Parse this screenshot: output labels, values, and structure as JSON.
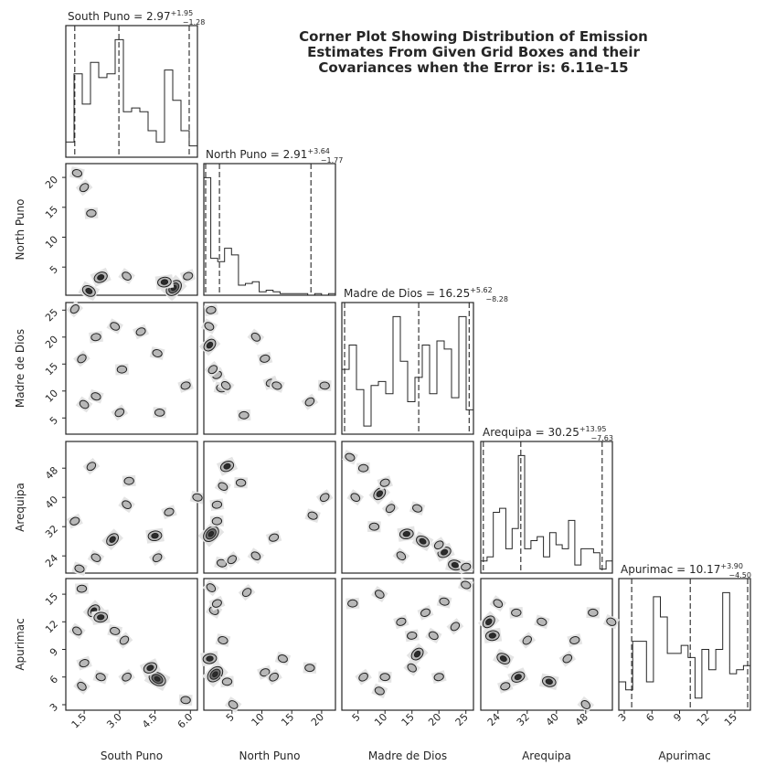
{
  "title_lines": [
    "Corner Plot Showing Distribution of Emission",
    "Estimates From Given Grid Boxes and their",
    "Covariances when the Error is: 6.11e-15"
  ],
  "chart_data": {
    "type": "corner",
    "parameters": [
      {
        "name": "South Puno",
        "median": "2.97",
        "plus": "+1.95",
        "minus": "−1.28",
        "range": [
          0.72,
          6.3
        ],
        "ticks": [
          1.5,
          3.0,
          4.5,
          6.0
        ],
        "tick_labels": [
          "1.5",
          "3.0",
          "4.5",
          "6.0"
        ],
        "quantiles": [
          1.1,
          2.97,
          5.95
        ],
        "hist": [
          4,
          22,
          14,
          25,
          21,
          22,
          31,
          12,
          13,
          12,
          7,
          4,
          23,
          15,
          7,
          3
        ]
      },
      {
        "name": "North Puno",
        "median": "2.91",
        "plus": "+3.64",
        "minus": "−1.77",
        "range": [
          0.3,
          22.3
        ],
        "ticks": [
          5,
          10,
          15,
          20
        ],
        "tick_labels": [
          "5",
          "10",
          "15",
          "20"
        ],
        "quantiles": [
          0.6,
          2.91,
          18.2
        ],
        "hist": [
          70,
          22,
          20,
          28,
          24,
          6,
          7,
          8,
          2,
          3,
          2,
          1,
          1,
          1,
          1,
          0,
          1,
          0,
          1
        ]
      },
      {
        "name": "Madre de Dios",
        "median": "16.25",
        "plus": "+5.62",
        "minus": "−8.28",
        "range": [
          2.0,
          26.4
        ],
        "ticks": [
          5,
          10,
          15,
          20,
          25
        ],
        "tick_labels": [
          "5",
          "10",
          "15",
          "20",
          "25"
        ],
        "quantiles": [
          2.5,
          16.25,
          25.6
        ],
        "hist": [
          16,
          22,
          11,
          2,
          12,
          13,
          10,
          29,
          18,
          8,
          14,
          22,
          10,
          23,
          21,
          9,
          29,
          6
        ]
      },
      {
        "name": "Arequipa",
        "median": "30.25",
        "plus": "+13.95",
        "minus": "−7.63",
        "range": [
          19.3,
          55.3
        ],
        "ticks": [
          24,
          32,
          40,
          48
        ],
        "tick_labels": [
          "24",
          "32",
          "40",
          "48"
        ],
        "quantiles": [
          20.0,
          30.25,
          52.5
        ],
        "hist": [
          3,
          4,
          15,
          16,
          6,
          11,
          29,
          6,
          8,
          9,
          4,
          10,
          7,
          6,
          13,
          2,
          6,
          6,
          5,
          1,
          3
        ]
      },
      {
        "name": "Apurimac",
        "median": "10.17",
        "plus": "+3.90",
        "minus": "−4.50",
        "range": [
          2.4,
          16.7
        ],
        "ticks": [
          3,
          6,
          9,
          12,
          15
        ],
        "tick_labels": [
          "3",
          "6",
          "9",
          "12",
          "15"
        ],
        "quantiles": [
          3.8,
          10.17,
          16.4
        ],
        "hist": [
          7,
          5,
          17,
          17,
          7,
          28,
          23,
          14,
          14,
          16,
          13,
          3,
          15,
          10,
          15,
          29,
          9,
          10,
          11
        ]
      }
    ],
    "pairs": [
      {
        "x": 0,
        "y": 1,
        "density": [
          [
            5.3,
            1.5,
            3
          ],
          [
            4.9,
            2.5,
            2
          ],
          [
            1.7,
            1,
            2
          ],
          [
            2.2,
            3.3,
            2
          ],
          [
            1.2,
            20.7,
            1
          ],
          [
            1.5,
            18.3,
            1
          ],
          [
            1.8,
            14,
            1
          ],
          [
            3.3,
            3.5,
            1
          ],
          [
            5.9,
            3.5,
            1
          ]
        ]
      },
      {
        "x": 0,
        "y": 2,
        "density": [
          [
            1.1,
            25.2,
            1
          ],
          [
            2.0,
            20,
            1
          ],
          [
            2.8,
            22,
            1
          ],
          [
            3.9,
            21,
            1
          ],
          [
            4.6,
            17,
            1
          ],
          [
            1.4,
            16,
            1
          ],
          [
            3.1,
            14,
            1
          ],
          [
            1.5,
            7.5,
            1
          ],
          [
            5.8,
            11,
            1
          ],
          [
            2.0,
            9,
            1
          ],
          [
            3.0,
            6,
            1
          ],
          [
            4.7,
            6,
            1
          ]
        ]
      },
      {
        "x": 0,
        "y": 3,
        "density": [
          [
            2.7,
            28.5,
            2
          ],
          [
            4.5,
            29.5,
            2
          ],
          [
            2.0,
            23.5,
            1
          ],
          [
            1.1,
            33.5,
            1
          ],
          [
            6.3,
            40,
            1
          ],
          [
            1.8,
            48.5,
            1
          ],
          [
            3.4,
            44.5,
            1
          ],
          [
            3.3,
            38,
            1
          ],
          [
            5.1,
            36,
            1
          ],
          [
            1.3,
            20.5,
            1
          ],
          [
            4.6,
            23.5,
            1
          ]
        ]
      },
      {
        "x": 0,
        "y": 4,
        "density": [
          [
            1.9,
            13.2,
            2
          ],
          [
            2.2,
            12.5,
            2
          ],
          [
            4.6,
            5.8,
            3
          ],
          [
            4.3,
            7,
            2
          ],
          [
            2.8,
            11,
            1
          ],
          [
            3.2,
            10,
            1
          ],
          [
            1.4,
            15.6,
            1
          ],
          [
            1.2,
            11,
            1
          ],
          [
            1.5,
            7.5,
            1
          ],
          [
            2.2,
            6,
            1
          ],
          [
            3.3,
            6,
            1
          ],
          [
            5.8,
            3.5,
            1
          ],
          [
            1.4,
            5,
            1
          ]
        ]
      },
      {
        "x": 1,
        "y": 2,
        "density": [
          [
            1.3,
            18.5,
            2
          ],
          [
            1.5,
            25,
            1
          ],
          [
            1.2,
            22,
            1
          ],
          [
            2.5,
            13,
            1
          ],
          [
            3.2,
            10.5,
            1
          ],
          [
            1.8,
            14,
            1
          ],
          [
            7,
            5.5,
            1
          ],
          [
            4,
            11,
            1
          ],
          [
            11.5,
            11.5,
            1
          ],
          [
            12.5,
            11,
            1
          ],
          [
            18,
            8,
            1
          ],
          [
            20.5,
            11,
            1
          ],
          [
            9,
            20,
            1
          ],
          [
            10.5,
            16,
            1
          ]
        ]
      },
      {
        "x": 1,
        "y": 3,
        "density": [
          [
            1.5,
            30,
            3
          ],
          [
            2.5,
            38,
            1
          ],
          [
            3.5,
            43,
            1
          ],
          [
            4.2,
            48.5,
            2
          ],
          [
            3.3,
            22,
            1
          ],
          [
            5,
            23,
            1
          ],
          [
            2.5,
            33.5,
            1
          ],
          [
            9,
            24,
            1
          ],
          [
            12,
            29,
            1
          ],
          [
            18.5,
            35,
            1
          ],
          [
            20.5,
            40,
            1
          ],
          [
            6.5,
            44,
            1
          ]
        ]
      },
      {
        "x": 1,
        "y": 4,
        "density": [
          [
            2.2,
            6.3,
            3
          ],
          [
            1.3,
            8,
            2
          ],
          [
            2,
            13.2,
            1
          ],
          [
            2.5,
            14,
            1
          ],
          [
            3.5,
            10,
            1
          ],
          [
            7.5,
            15.2,
            1
          ],
          [
            4.2,
            5.5,
            1
          ],
          [
            5.2,
            3,
            1
          ],
          [
            10.5,
            6.5,
            1
          ],
          [
            13.5,
            8,
            1
          ],
          [
            12,
            6,
            1
          ],
          [
            18,
            7,
            1
          ],
          [
            1.5,
            15.7,
            1
          ]
        ]
      },
      {
        "x": 2,
        "y": 3,
        "density": [
          [
            9,
            41,
            2
          ],
          [
            14,
            30,
            2
          ],
          [
            17,
            28,
            2
          ],
          [
            21,
            25,
            2
          ],
          [
            23,
            21.5,
            2
          ],
          [
            11,
            37,
            1
          ],
          [
            6,
            48,
            1
          ],
          [
            4.5,
            40,
            1
          ],
          [
            10,
            44,
            1
          ],
          [
            16,
            37,
            1
          ],
          [
            20,
            27,
            1
          ],
          [
            8,
            32,
            1
          ],
          [
            13,
            24,
            1
          ],
          [
            25,
            21,
            1
          ],
          [
            3.5,
            51,
            1
          ]
        ]
      },
      {
        "x": 2,
        "y": 4,
        "density": [
          [
            16,
            8.5,
            2
          ],
          [
            15,
            10.5,
            1
          ],
          [
            19,
            10.5,
            1
          ],
          [
            17.5,
            13,
            1
          ],
          [
            21,
            14.2,
            1
          ],
          [
            23,
            11.5,
            1
          ],
          [
            4,
            14,
            1
          ],
          [
            9,
            15,
            1
          ],
          [
            13,
            12,
            1
          ],
          [
            25,
            16,
            1
          ],
          [
            6,
            6,
            1
          ],
          [
            10,
            6,
            1
          ],
          [
            15,
            7,
            1
          ],
          [
            20,
            6,
            1
          ],
          [
            9,
            4.5,
            1
          ]
        ]
      },
      {
        "x": 3,
        "y": 4,
        "density": [
          [
            21.5,
            12,
            2
          ],
          [
            22.5,
            10.5,
            2
          ],
          [
            25.5,
            8,
            2
          ],
          [
            29.5,
            6,
            2
          ],
          [
            38,
            5.5,
            2
          ],
          [
            32,
            10,
            1
          ],
          [
            29,
            13,
            1
          ],
          [
            24,
            14,
            1
          ],
          [
            26,
            5,
            1
          ],
          [
            36,
            12,
            1
          ],
          [
            43,
            8,
            1
          ],
          [
            50,
            13,
            1
          ],
          [
            48,
            3,
            1
          ],
          [
            45,
            10,
            1
          ],
          [
            55,
            12,
            1
          ]
        ]
      }
    ]
  }
}
